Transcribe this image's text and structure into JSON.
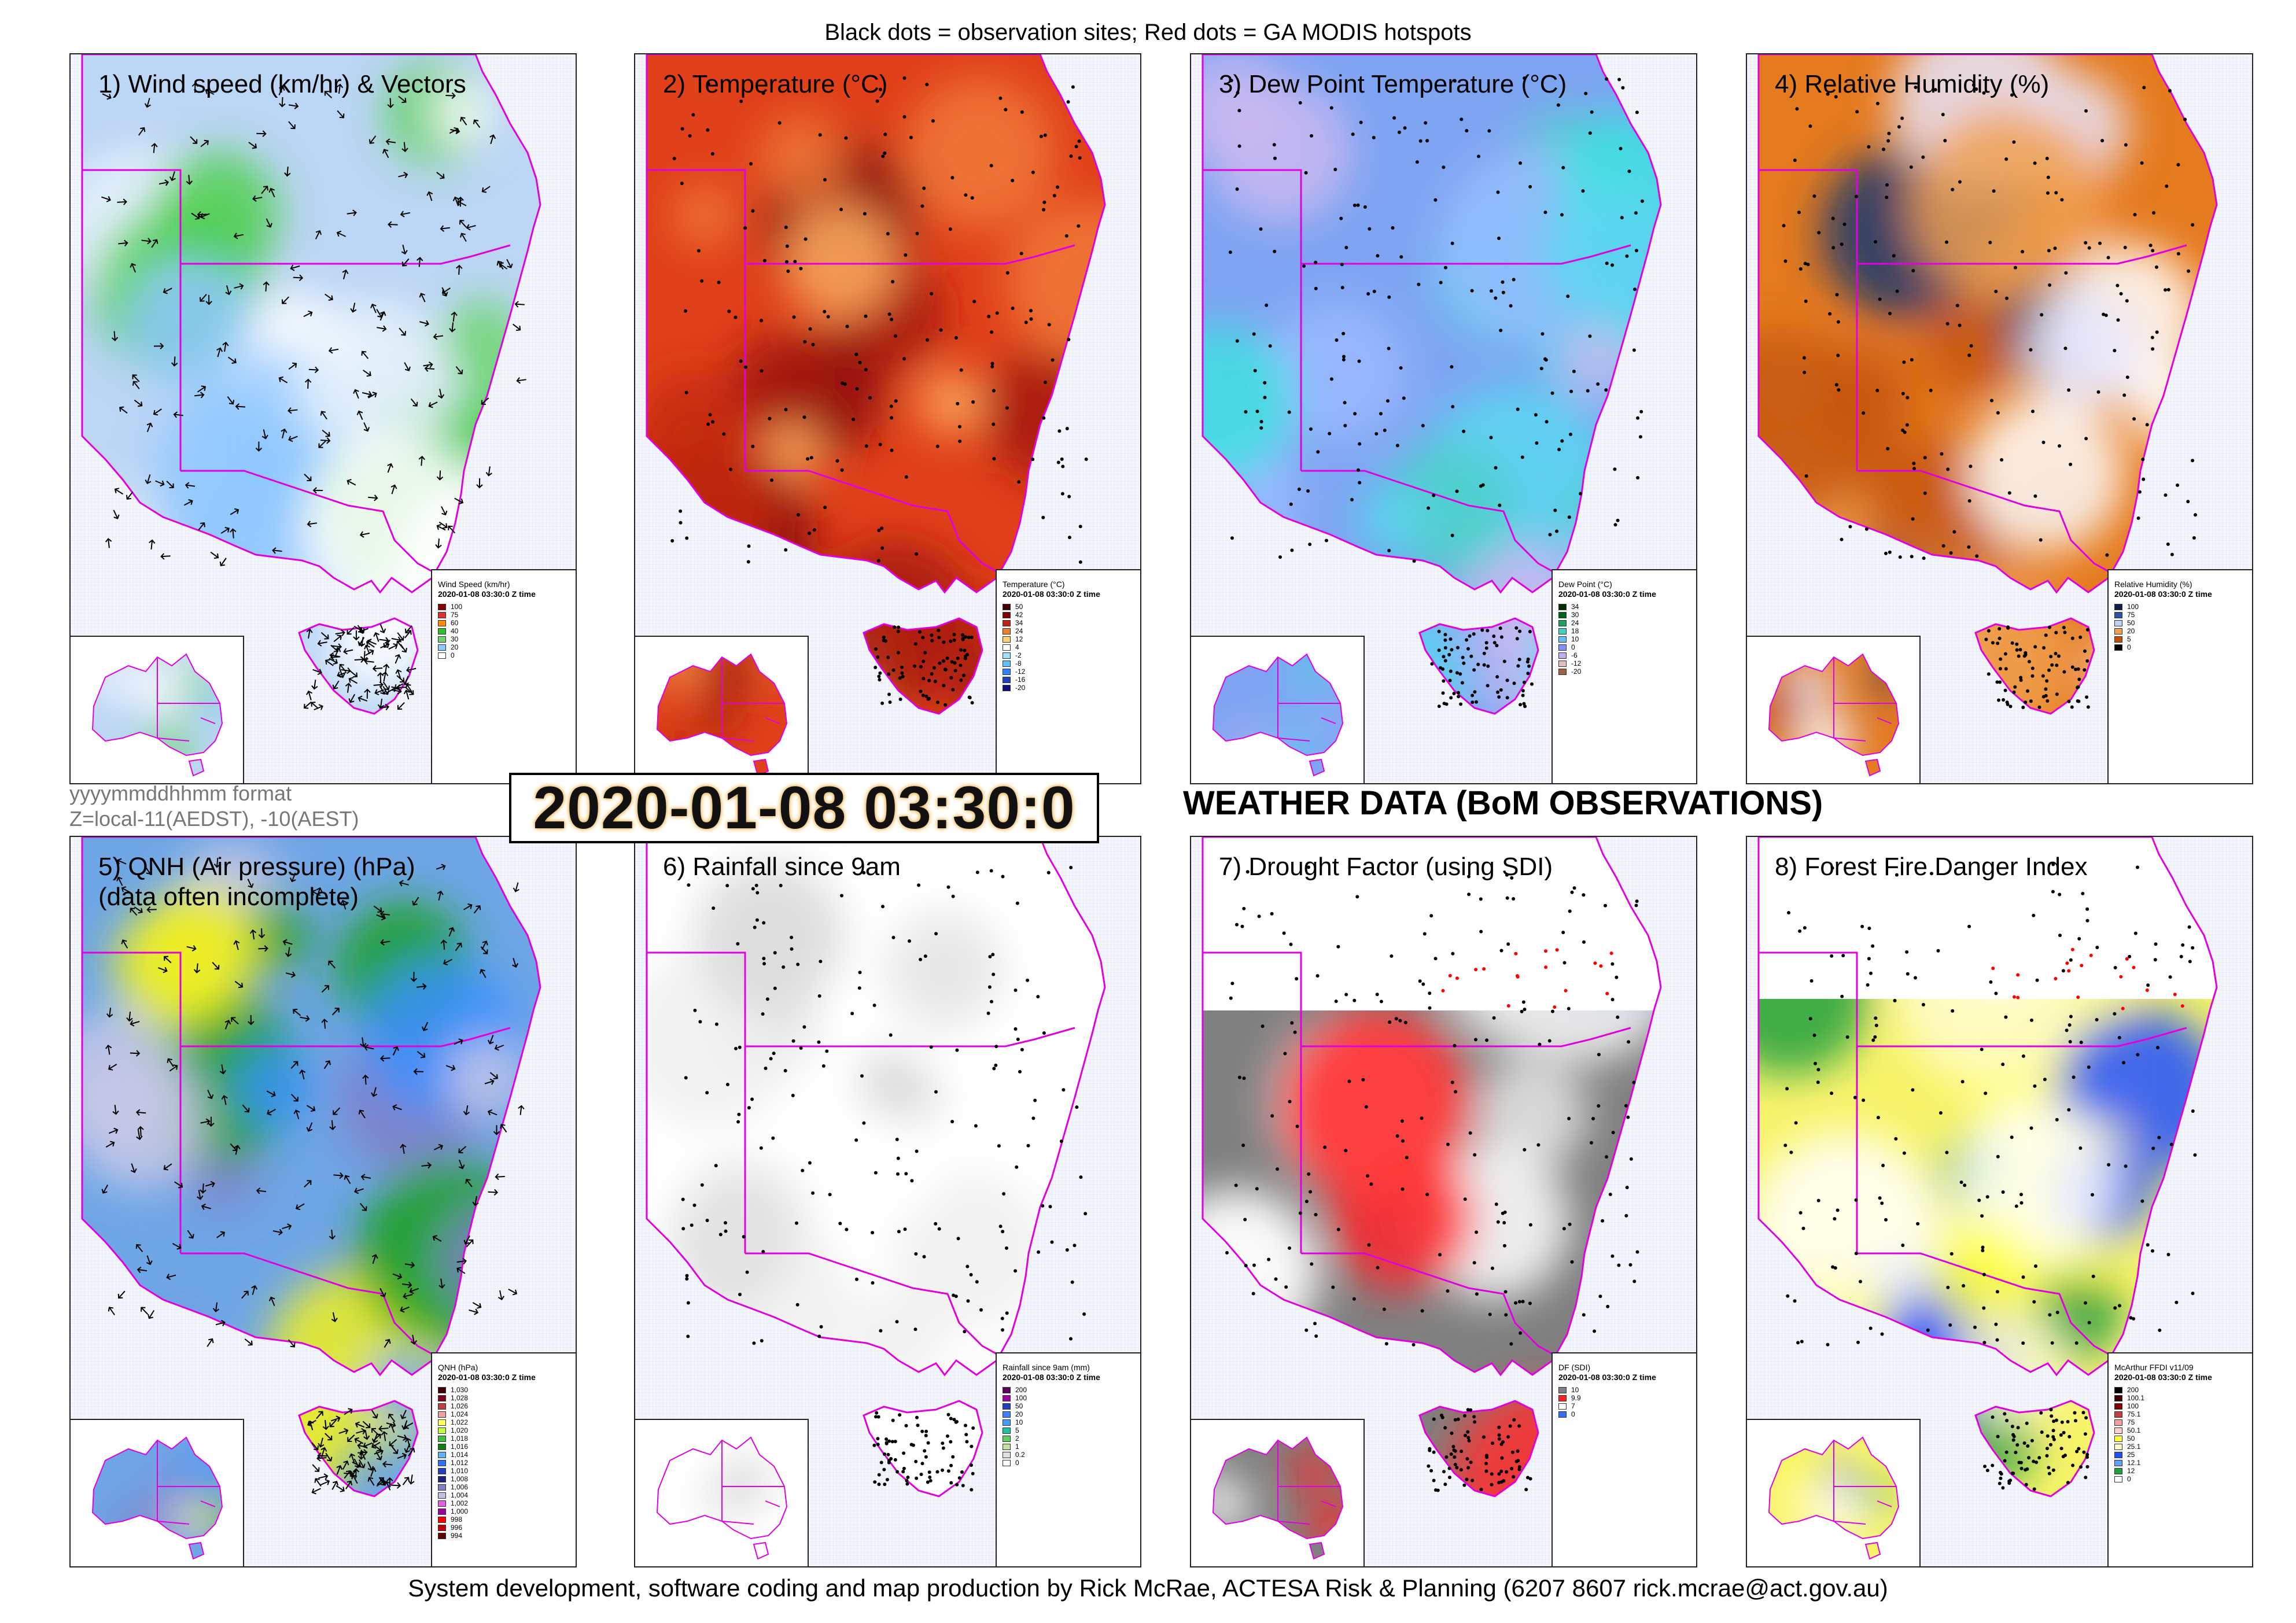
{
  "top_caption": "Black dots = observation sites; Red dots = GA MODIS hotspots",
  "footer": "System development, software coding and map production by Rick McRae, ACTESA Risk & Planning (6207 8607 rick.mcrae@act.gov.au)",
  "timestamp": "2020-01-08 03:30:0",
  "heading": "WEATHER DATA (BoM OBSERVATIONS)",
  "meta": {
    "format_line": "yyyymmddhhmm format",
    "zone_line": "Z=local-11(AEDST), -10(AEST)"
  },
  "colors": {
    "border_pink": "#e000e0",
    "sea_grid": "#dfe6f5",
    "obs_dot": "#000000",
    "hotspot": "#ff0000"
  },
  "panels": [
    {
      "id": "wind",
      "title": "1) Wind speed (km/hr) & Vectors",
      "subtitle": "",
      "base": "#bcd6f5",
      "blobs": [
        "#ffffff",
        "#e8f2fc",
        "#4ccf4c",
        "#8fc8ff",
        "#6bd66b"
      ],
      "legend": {
        "title": "Wind Speed (km/hr)",
        "time": "2020-01-08 03:30:0 Z time",
        "items": [
          [
            "100",
            "#8b0000"
          ],
          [
            "75",
            "#e03030"
          ],
          [
            "60",
            "#ff8c00"
          ],
          [
            "40",
            "#2fbf2f"
          ],
          [
            "30",
            "#6bd66b"
          ],
          [
            "20",
            "#8fc8ff"
          ],
          [
            "0",
            "#ffffff"
          ]
        ]
      },
      "arrows": true
    },
    {
      "id": "temperature",
      "title": "2) Temperature (°C)",
      "subtitle": "",
      "base": "#e0401a",
      "blobs": [
        "#8a1208",
        "#a51a0a",
        "#c52a10",
        "#f07a3a",
        "#ffb060"
      ],
      "legend": {
        "title": "Temperature (°C)",
        "time": "2020-01-08 03:30:0 Z time",
        "items": [
          [
            "50",
            "#400000"
          ],
          [
            "42",
            "#800000"
          ],
          [
            "34",
            "#c02010"
          ],
          [
            "24",
            "#f08030"
          ],
          [
            "12",
            "#ffd070"
          ],
          [
            "4",
            "#ffffff"
          ],
          [
            "-2",
            "#a0e0ff"
          ],
          [
            "-8",
            "#60c0ff"
          ],
          [
            "-12",
            "#3080ff"
          ],
          [
            "-16",
            "#2040c0"
          ],
          [
            "-20",
            "#101080"
          ]
        ]
      },
      "arrows": false
    },
    {
      "id": "dewpoint",
      "title": "3) Dew Point Temperature (°C)",
      "subtitle": "",
      "base": "#7ea4f2",
      "blobs": [
        "#5ad6f0",
        "#c9b8f0",
        "#4fd0c8",
        "#9ab8ff",
        "#40e0e0"
      ],
      "legend": {
        "title": "Dew Point (°C)",
        "time": "2020-01-08 03:30:0 Z time",
        "items": [
          [
            "34",
            "#003000"
          ],
          [
            "30",
            "#006020"
          ],
          [
            "24",
            "#20a060"
          ],
          [
            "18",
            "#40d0c0"
          ],
          [
            "10",
            "#60c0ff"
          ],
          [
            "0",
            "#8090ff"
          ],
          [
            "-6",
            "#c0b0f0"
          ],
          [
            "-12",
            "#e0c0c0"
          ],
          [
            "-20",
            "#a06040"
          ]
        ]
      },
      "arrows": false
    },
    {
      "id": "rh",
      "title": "4) Relative Humidity (%)",
      "subtitle": "",
      "base": "#e57a1e",
      "blobs": [
        "#c5560c",
        "#f0a050",
        "#ffffff",
        "#1a3a70",
        "#e8e8ff"
      ],
      "legend": {
        "title": "Relative Humidity (%)",
        "time": "2020-01-08 03:30:0 Z time",
        "items": [
          [
            "100",
            "#10204a"
          ],
          [
            "75",
            "#3050a0"
          ],
          [
            "50",
            "#c0d0f0"
          ],
          [
            "20",
            "#f0a050"
          ],
          [
            "5",
            "#c05000"
          ],
          [
            "0",
            "#000000"
          ]
        ]
      },
      "arrows": false
    },
    {
      "id": "qnh",
      "title": "5) QNH (Air pressure) (hPa)",
      "subtitle": "(data often incomplete)",
      "base": "#6fa6e6",
      "blobs": [
        "#8080c8",
        "#c8c8e8",
        "#1aa01a",
        "#f0f020",
        "#3a90ff"
      ],
      "legend": {
        "title": "QNH (hPa)",
        "time": "2020-01-08 03:30:0 Z time",
        "items": [
          [
            "1,030",
            "#400000"
          ],
          [
            "1,028",
            "#800020"
          ],
          [
            "1,026",
            "#c04040"
          ],
          [
            "1,024",
            "#f0a0a0"
          ],
          [
            "1,022",
            "#ffff60"
          ],
          [
            "1,020",
            "#c0ff40"
          ],
          [
            "1,018",
            "#40c040"
          ],
          [
            "1,016",
            "#108010"
          ],
          [
            "1,014",
            "#60b0ff"
          ],
          [
            "1,012",
            "#3070ff"
          ],
          [
            "1,010",
            "#2040c0"
          ],
          [
            "1,008",
            "#202080"
          ],
          [
            "1,006",
            "#8080c0"
          ],
          [
            "1,004",
            "#c0c0e0"
          ],
          [
            "1,002",
            "#e060e0"
          ],
          [
            "1,000",
            "#a000a0"
          ],
          [
            "998",
            "#ff0000"
          ],
          [
            "996",
            "#c00000"
          ],
          [
            "994",
            "#600000"
          ]
        ]
      },
      "arrows": true
    },
    {
      "id": "rain",
      "title": "6) Rainfall since 9am",
      "subtitle": "",
      "base": "#ffffff",
      "blobs": [
        "#d8d8d8",
        "#ffffff",
        "#e4e4e4",
        "#ffffff",
        "#f0f0f0"
      ],
      "legend": {
        "title": "Rainfall since 9am (mm)",
        "time": "2020-01-08 03:30:0 Z time",
        "items": [
          [
            "200",
            "#600060"
          ],
          [
            "100",
            "#a000a0"
          ],
          [
            "50",
            "#2040c0"
          ],
          [
            "20",
            "#4080ff"
          ],
          [
            "10",
            "#40a0ff"
          ],
          [
            "5",
            "#20c0a0"
          ],
          [
            "2",
            "#60d060"
          ],
          [
            "1",
            "#c0e0a0"
          ],
          [
            "0.2",
            "#e0e0e0"
          ],
          [
            "0",
            "#ffffff"
          ]
        ]
      },
      "arrows": false
    },
    {
      "id": "drought",
      "title": "7) Drought Factor (using SDI)",
      "subtitle": "",
      "base": "#808080",
      "blobs": [
        "#ff2020",
        "#ffffff",
        "#7fa8f0",
        "#ff3030",
        "#e8e8e8"
      ],
      "legend": {
        "title": "DF (SDI)",
        "time": "2020-01-08 03:30:0 Z time",
        "items": [
          [
            "10",
            "#808080"
          ],
          [
            "9.9",
            "#ff2020"
          ],
          [
            "7",
            "#ffffff"
          ],
          [
            "0",
            "#3070ff"
          ]
        ]
      },
      "arrows": false
    },
    {
      "id": "ffdi",
      "title": "8) Forest Fire Danger Index",
      "subtitle": "",
      "base": "#f8f46a",
      "blobs": [
        "#ffff40",
        "#fffbd0",
        "#2050ff",
        "#20a040",
        "#ffffff"
      ],
      "legend": {
        "title": "McArthur FFDI v11/09",
        "time": "2020-01-08 03:30:0 Z time",
        "items": [
          [
            "200",
            "#000000"
          ],
          [
            "100.1",
            "#400000"
          ],
          [
            "100",
            "#800000"
          ],
          [
            "75.1",
            "#c04040"
          ],
          [
            "75",
            "#f0a0a0"
          ],
          [
            "50.1",
            "#ffd0d0"
          ],
          [
            "50",
            "#ffff40"
          ],
          [
            "25.1",
            "#fffbd0"
          ],
          [
            "25",
            "#2050ff"
          ],
          [
            "12.1",
            "#60a0ff"
          ],
          [
            "12",
            "#20a040"
          ],
          [
            "0",
            "#ffffff"
          ]
        ]
      },
      "arrows": false
    }
  ]
}
